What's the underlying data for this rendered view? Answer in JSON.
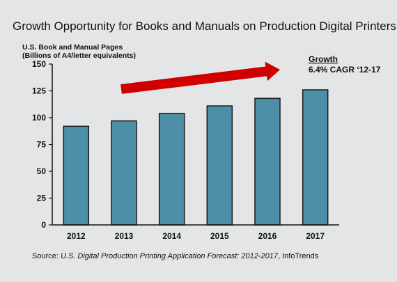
{
  "chart_data": {
    "type": "bar",
    "title": "Growth Opportunity for Books and Manuals on Production Digital Printers",
    "ylabel_line1": "U.S. Book and Manual Pages",
    "ylabel_line2": "(Billions of A4/letter equivalents)",
    "categories": [
      "2012",
      "2013",
      "2014",
      "2015",
      "2016",
      "2017"
    ],
    "values": [
      92,
      97,
      104,
      111,
      118,
      126
    ],
    "ylim": [
      0,
      150
    ],
    "yticks": [
      0,
      25,
      50,
      75,
      100,
      125,
      150
    ],
    "grid": false,
    "annotation": {
      "title": "Growth",
      "text": "6.4% CAGR ‘12-17"
    },
    "source": {
      "prefix": "Source: ",
      "italic": "U.S. Digital Production Printing Application Forecast: 2012-2017",
      "suffix": ", InfoTrends"
    },
    "colors": {
      "bar": "#4d8fa6",
      "bar_stroke": "#1a1a1a",
      "arrow": "#d10000",
      "axis": "#111111"
    }
  }
}
